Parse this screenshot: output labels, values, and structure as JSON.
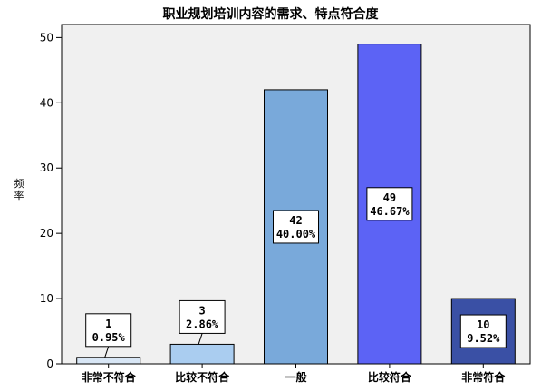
{
  "chart_data": {
    "type": "bar",
    "title": "职业规划培训内容的需求、特点符合度",
    "xlabel": "",
    "ylabel": "频率",
    "categories": [
      "非常不符合",
      "比较不符合",
      "一般",
      "比较符合",
      "非常符合"
    ],
    "values": [
      1,
      3,
      42,
      49,
      10
    ],
    "percent_labels": [
      "0.95%",
      "2.86%",
      "40.00%",
      "46.67%",
      "9.52%"
    ],
    "bar_colors": [
      "#d8e6f5",
      "#aacdf0",
      "#79a9da",
      "#5c63f5",
      "#3a50a5"
    ],
    "ylim": [
      0,
      52
    ],
    "yticks": [
      0,
      10,
      20,
      30,
      40,
      50
    ],
    "plot_background": "#f0f0f0",
    "grid": false,
    "legend": "none"
  }
}
